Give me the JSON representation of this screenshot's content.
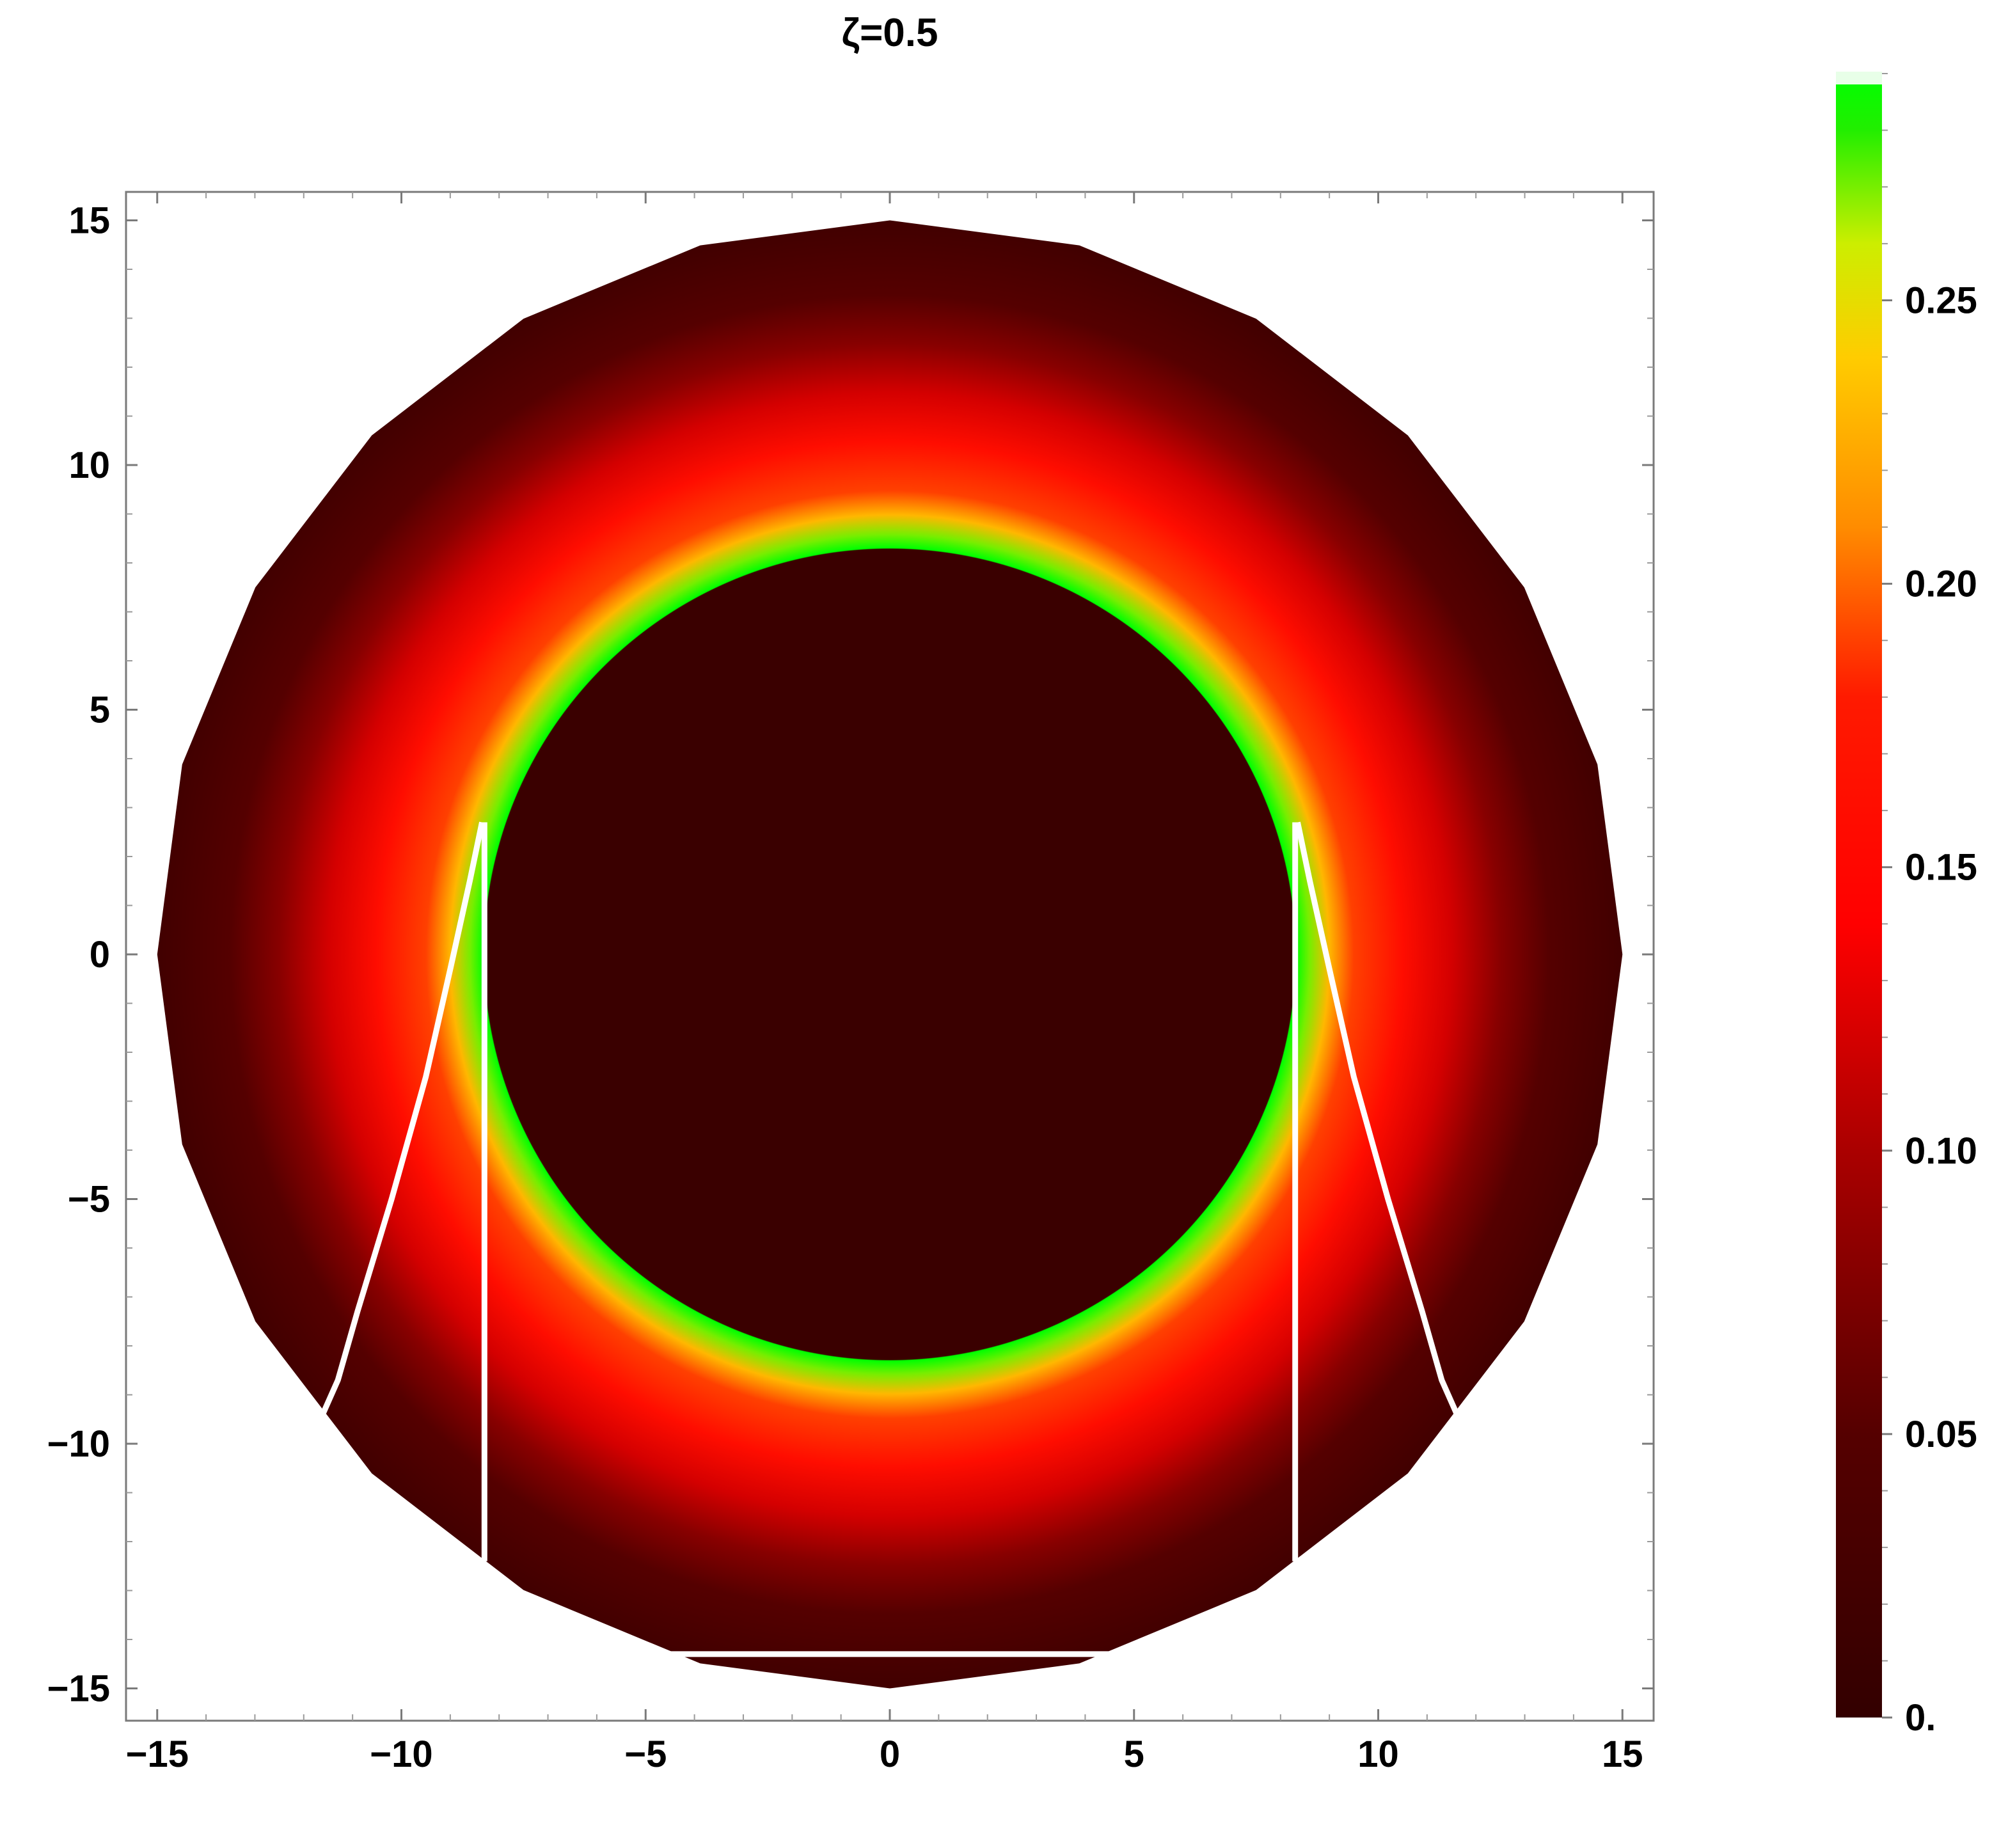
{
  "chart_data": {
    "type": "heatmap",
    "title": "ζ=0.5",
    "xlabel": "",
    "ylabel": "",
    "xlim": [
      -15.5,
      15.5
    ],
    "ylim": [
      -15.5,
      15.5
    ],
    "x_ticks": [
      -15,
      -10,
      -5,
      0,
      5,
      10,
      15
    ],
    "y_ticks": [
      15,
      10,
      5,
      0,
      -5,
      -10,
      -15
    ],
    "x_tick_labels": [
      "−15",
      "−10",
      "−5",
      "0",
      "5",
      "10",
      "15"
    ],
    "y_tick_labels": [
      "15",
      "10",
      "5",
      "0",
      "−5",
      "−10",
      "−15"
    ],
    "disk": {
      "outer_radius": 15,
      "shadow_radius": 8.3,
      "peak_intensity_radius": 8.35,
      "sides": 24
    },
    "intensity_profile": [
      {
        "r": 8.3,
        "value": 0.29
      },
      {
        "r": 8.6,
        "value": 0.27
      },
      {
        "r": 9.0,
        "value": 0.23
      },
      {
        "r": 9.5,
        "value": 0.19
      },
      {
        "r": 10.5,
        "value": 0.16
      },
      {
        "r": 11.5,
        "value": 0.12
      },
      {
        "r": 12.5,
        "value": 0.08
      },
      {
        "r": 13.5,
        "value": 0.05
      },
      {
        "r": 15.0,
        "value": 0.02
      }
    ],
    "shadow_value": 0.01,
    "colorbar": {
      "range": [
        0,
        0.29
      ],
      "ticks": [
        0,
        0.05,
        0.1,
        0.15,
        0.2,
        0.25
      ],
      "tick_labels": [
        "0.",
        "0.05",
        "0.10",
        "0.15",
        "0.20",
        "0.25"
      ],
      "colors": [
        {
          "value": 0.0,
          "color": "#330000"
        },
        {
          "value": 0.05,
          "color": "#550000"
        },
        {
          "value": 0.1,
          "color": "#aa0000"
        },
        {
          "value": 0.14,
          "color": "#ff0000"
        },
        {
          "value": 0.18,
          "color": "#ff1a00"
        },
        {
          "value": 0.21,
          "color": "#ff8c00"
        },
        {
          "value": 0.24,
          "color": "#ffcc00"
        },
        {
          "value": 0.26,
          "color": "#ccee00"
        },
        {
          "value": 0.28,
          "color": "#22ee00"
        },
        {
          "value": 0.29,
          "color": "#00ff00"
        }
      ]
    },
    "lines": {
      "color": "#ffffff",
      "left_vertical": [
        [
          -8.3,
          2.7
        ],
        [
          -8.3,
          -12.4
        ]
      ],
      "right_vertical": [
        [
          8.3,
          2.7
        ],
        [
          8.3,
          -12.4
        ]
      ],
      "left_curve": [
        [
          -8.35,
          2.7
        ],
        [
          -8.6,
          1.5
        ],
        [
          -9.0,
          -0.3
        ],
        [
          -9.5,
          -2.5
        ],
        [
          -10.2,
          -5.0
        ],
        [
          -10.9,
          -7.3
        ],
        [
          -11.3,
          -8.7
        ],
        [
          -11.7,
          -9.6
        ]
      ],
      "right_curve": [
        [
          8.35,
          2.7
        ],
        [
          8.6,
          1.5
        ],
        [
          9.0,
          -0.3
        ],
        [
          9.5,
          -2.5
        ],
        [
          10.2,
          -5.0
        ],
        [
          10.9,
          -7.3
        ],
        [
          11.3,
          -8.7
        ],
        [
          11.7,
          -9.6
        ]
      ],
      "bottom": [
        [
          -4.5,
          -14.3
        ],
        [
          4.5,
          -14.3
        ]
      ]
    }
  }
}
